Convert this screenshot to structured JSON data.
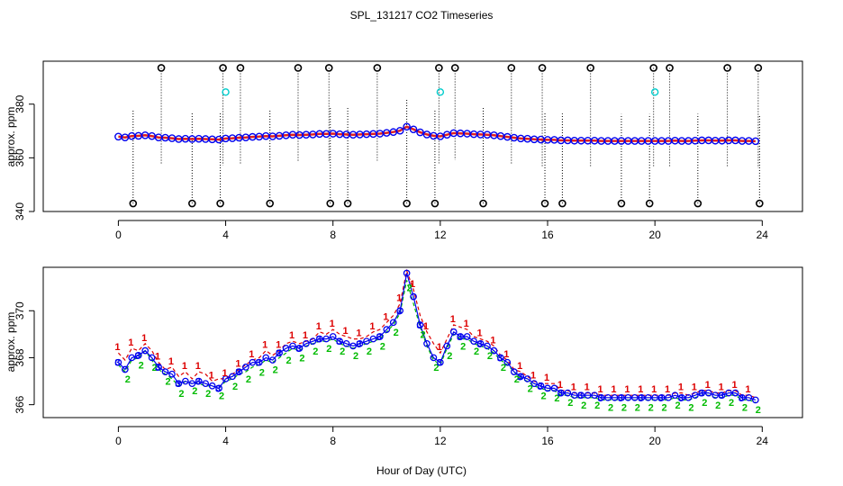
{
  "title": "SPL_131217  CO2 Timeseries",
  "colors": {
    "station1": "#dd0000",
    "station2": "#00bb00",
    "station3": "#0000ee",
    "mean": "#dd2222",
    "outlier": "#000000",
    "flag": "#00cccc"
  },
  "chart_data": [
    {
      "type": "scatter",
      "panel": "top",
      "title": "SPL_131217  CO2 Timeseries",
      "xlabel": "",
      "ylabel": "approx. ppm",
      "xlim": [
        -2.8,
        25.5
      ],
      "ylim": [
        340,
        396
      ],
      "xticks": [
        "0",
        "4",
        "8",
        "12",
        "16",
        "20",
        "24"
      ],
      "yticks": [
        "340",
        "360",
        "380"
      ],
      "x": [
        0.0,
        0.25,
        0.5,
        0.75,
        1.0,
        1.25,
        1.5,
        1.75,
        2.0,
        2.25,
        2.5,
        2.75,
        3.0,
        3.25,
        3.5,
        3.75,
        4.0,
        4.25,
        4.5,
        4.75,
        5.0,
        5.25,
        5.5,
        5.75,
        6.0,
        6.25,
        6.5,
        6.75,
        7.0,
        7.25,
        7.5,
        7.75,
        8.0,
        8.25,
        8.5,
        8.75,
        9.0,
        9.25,
        9.5,
        9.75,
        10.0,
        10.25,
        10.5,
        10.75,
        11.0,
        11.25,
        11.5,
        11.75,
        12.0,
        12.25,
        12.5,
        12.75,
        13.0,
        13.25,
        13.5,
        13.75,
        14.0,
        14.25,
        14.5,
        14.75,
        15.0,
        15.25,
        15.5,
        15.75,
        16.0,
        16.25,
        16.5,
        16.75,
        17.0,
        17.25,
        17.5,
        17.75,
        18.0,
        18.25,
        18.5,
        18.75,
        19.0,
        19.25,
        19.5,
        19.75,
        20.0,
        20.25,
        20.5,
        20.75,
        21.0,
        21.25,
        21.5,
        21.75,
        22.0,
        22.25,
        22.5,
        22.75,
        23.0,
        23.25,
        23.5,
        23.75
      ],
      "mean_ppm": [
        367.9,
        367.6,
        368.1,
        368.2,
        368.4,
        368.1,
        367.6,
        367.5,
        367.3,
        367.0,
        367.1,
        367.0,
        367.1,
        367.0,
        366.9,
        366.8,
        367.2,
        367.3,
        367.5,
        367.6,
        367.8,
        367.9,
        368.1,
        368.0,
        368.2,
        368.4,
        368.6,
        368.5,
        368.6,
        368.7,
        368.9,
        368.9,
        369.0,
        368.8,
        368.7,
        368.6,
        368.7,
        368.8,
        368.9,
        369.0,
        369.3,
        369.6,
        370.1,
        371.6,
        370.6,
        369.5,
        368.7,
        368.2,
        368.0,
        368.6,
        369.2,
        369.1,
        369.0,
        368.8,
        368.7,
        368.6,
        368.4,
        368.1,
        367.8,
        367.5,
        367.2,
        367.1,
        366.9,
        366.8,
        366.7,
        366.7,
        366.5,
        366.5,
        366.4,
        366.4,
        366.4,
        366.4,
        366.3,
        366.3,
        366.3,
        366.3,
        366.3,
        366.3,
        366.3,
        366.3,
        366.3,
        366.3,
        366.3,
        366.4,
        366.3,
        366.3,
        366.4,
        366.5,
        366.5,
        366.4,
        366.4,
        366.5,
        366.5,
        366.3,
        366.3,
        366.2
      ],
      "high_outliers": {
        "x": [
          1.6,
          3.9,
          4.55,
          6.7,
          7.85,
          9.65,
          11.95,
          12.55,
          14.65,
          15.8,
          17.6,
          19.95,
          20.55,
          22.7,
          23.85
        ],
        "y": [
          393.5,
          393.5,
          393.5,
          393.5,
          393.5,
          393.5,
          393.5,
          393.5,
          393.5,
          393.5,
          393.5,
          393.5,
          393.5,
          393.5,
          393.5
        ]
      },
      "low_outliers": {
        "x": [
          0.55,
          2.75,
          3.8,
          5.65,
          7.9,
          8.55,
          10.75,
          11.8,
          13.6,
          15.9,
          16.55,
          18.75,
          19.8,
          21.6,
          23.9
        ],
        "y": [
          343,
          343,
          343,
          343,
          343,
          343,
          343,
          343,
          343,
          343,
          343,
          343,
          343,
          343,
          343
        ]
      },
      "flagged_points": {
        "x": [
          4.0,
          12.0,
          20.0
        ],
        "y": [
          384.5,
          384.5,
          384.5
        ]
      }
    },
    {
      "type": "line",
      "panel": "bottom",
      "title": "",
      "xlabel": "Hour of Day (UTC)",
      "ylabel": "approx. ppm",
      "xlim": [
        -2.8,
        25.5
      ],
      "ylim": [
        365.45,
        371.85
      ],
      "xticks": [
        "0",
        "4",
        "8",
        "12",
        "16",
        "20",
        "24"
      ],
      "yticks": [
        "366",
        "368",
        "370"
      ],
      "legend_symbols": [
        "1",
        "2",
        "3"
      ],
      "x": [
        0.0,
        0.25,
        0.5,
        0.75,
        1.0,
        1.25,
        1.5,
        1.75,
        2.0,
        2.25,
        2.5,
        2.75,
        3.0,
        3.25,
        3.5,
        3.75,
        4.0,
        4.25,
        4.5,
        4.75,
        5.0,
        5.25,
        5.5,
        5.75,
        6.0,
        6.25,
        6.5,
        6.75,
        7.0,
        7.25,
        7.5,
        7.75,
        8.0,
        8.25,
        8.5,
        8.75,
        9.0,
        9.25,
        9.5,
        9.75,
        10.0,
        10.25,
        10.5,
        10.75,
        11.0,
        11.25,
        11.5,
        11.75,
        12.0,
        12.25,
        12.5,
        12.75,
        13.0,
        13.25,
        13.5,
        13.75,
        14.0,
        14.25,
        14.5,
        14.75,
        15.0,
        15.25,
        15.5,
        15.75,
        16.0,
        16.25,
        16.5,
        16.75,
        17.0,
        17.25,
        17.5,
        17.75,
        18.0,
        18.25,
        18.5,
        18.75,
        19.0,
        19.25,
        19.5,
        19.75,
        20.0,
        20.25,
        20.5,
        20.75,
        21.0,
        21.25,
        21.5,
        21.75,
        22.0,
        22.25,
        22.5,
        22.75,
        23.0,
        23.25,
        23.5,
        23.75
      ],
      "series": [
        {
          "name": "1",
          "values": [
            368.2,
            367.9,
            368.4,
            368.3,
            368.6,
            368.3,
            367.8,
            367.5,
            367.6,
            367.2,
            367.4,
            367.1,
            367.4,
            367.3,
            367.0,
            367.1,
            367.1,
            367.3,
            367.5,
            367.7,
            367.9,
            368.0,
            368.3,
            368.1,
            368.3,
            368.6,
            368.7,
            368.6,
            368.7,
            368.8,
            369.1,
            369.0,
            369.2,
            369.0,
            368.9,
            368.8,
            368.8,
            368.9,
            369.1,
            369.2,
            369.5,
            369.8,
            370.3,
            371.7,
            370.9,
            369.8,
            369.1,
            368.6,
            368.2,
            368.8,
            369.4,
            369.3,
            369.2,
            368.9,
            368.8,
            368.7,
            368.5,
            368.1,
            367.9,
            367.5,
            367.4,
            367.2,
            367.0,
            366.9,
            366.9,
            366.9,
            366.6,
            366.6,
            366.5,
            366.5,
            366.5,
            366.5,
            366.4,
            366.4,
            366.4,
            366.4,
            366.4,
            366.4,
            366.4,
            366.4,
            366.4,
            366.4,
            366.4,
            366.5,
            366.5,
            366.4,
            366.5,
            366.6,
            366.6,
            366.5,
            366.5,
            366.6,
            366.6,
            366.4,
            366.4,
            366.3
          ]
        },
        {
          "name": "2",
          "values": [
            367.7,
            367.4,
            367.9,
            368.0,
            368.3,
            367.9,
            367.5,
            367.3,
            367.1,
            366.8,
            367.0,
            366.9,
            366.9,
            366.8,
            366.8,
            366.7,
            367.0,
            367.1,
            367.3,
            367.4,
            367.6,
            367.7,
            367.9,
            367.8,
            368.0,
            368.2,
            368.4,
            368.3,
            368.5,
            368.6,
            368.7,
            368.7,
            368.8,
            368.6,
            368.5,
            368.4,
            368.5,
            368.6,
            368.7,
            368.8,
            369.1,
            369.4,
            369.9,
            371.3,
            370.3,
            369.3,
            368.5,
            367.9,
            367.7,
            368.4,
            369.0,
            368.8,
            368.8,
            368.6,
            368.5,
            368.4,
            368.2,
            367.9,
            367.7,
            367.4,
            367.1,
            367.0,
            366.8,
            366.7,
            366.6,
            366.6,
            366.4,
            366.4,
            366.3,
            366.3,
            366.3,
            366.3,
            366.2,
            366.2,
            366.2,
            366.2,
            366.2,
            366.2,
            366.2,
            366.2,
            366.2,
            366.2,
            366.2,
            366.3,
            366.2,
            366.2,
            366.3,
            366.4,
            366.4,
            366.3,
            366.3,
            366.4,
            366.4,
            366.2,
            366.2,
            366.1
          ]
        },
        {
          "name": "3",
          "values": [
            367.8,
            367.5,
            368.0,
            368.1,
            368.3,
            368.0,
            367.6,
            367.4,
            367.3,
            366.9,
            367.0,
            366.9,
            367.0,
            366.9,
            366.8,
            366.7,
            367.1,
            367.2,
            367.4,
            367.6,
            367.8,
            367.8,
            368.0,
            367.9,
            368.2,
            368.4,
            368.5,
            368.4,
            368.6,
            368.7,
            368.8,
            368.8,
            368.9,
            368.7,
            368.6,
            368.5,
            368.6,
            368.7,
            368.8,
            368.9,
            369.2,
            369.5,
            370.0,
            371.6,
            370.6,
            369.4,
            368.6,
            368.0,
            367.8,
            368.5,
            369.1,
            368.9,
            368.9,
            368.7,
            368.6,
            368.5,
            368.3,
            368.0,
            367.8,
            367.4,
            367.2,
            367.1,
            366.9,
            366.8,
            366.7,
            366.7,
            366.5,
            366.5,
            366.4,
            366.4,
            366.4,
            366.4,
            366.3,
            366.3,
            366.3,
            366.3,
            366.3,
            366.3,
            366.3,
            366.3,
            366.3,
            366.3,
            366.3,
            366.4,
            366.3,
            366.3,
            366.4,
            366.5,
            366.5,
            366.4,
            366.4,
            366.5,
            366.5,
            366.3,
            366.3,
            366.2
          ]
        }
      ]
    }
  ]
}
